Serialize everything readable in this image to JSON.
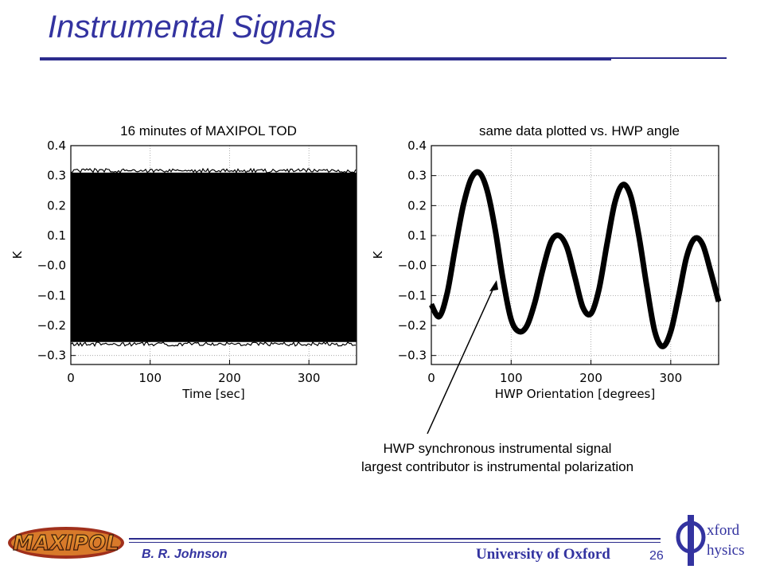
{
  "slide": {
    "title": "Instrumental Signals",
    "annotation_line1": "HWP synchronous instrumental signal",
    "annotation_line2": "largest contributor is instrumental polarization",
    "author": "B. R. Johnson",
    "university": "University of Oxford",
    "page_number": "26",
    "maxipol_logo_text": "MAXIPOL",
    "oxford_logo_text": [
      "xford",
      "hysics"
    ],
    "accent_color": "#3333a0"
  },
  "chart_data": [
    {
      "type": "area",
      "title": "16 minutes of MAXIPOL TOD",
      "xlabel": "Time [sec]",
      "ylabel": "K",
      "xlim": [
        0,
        360
      ],
      "ylim": [
        -0.33,
        0.4
      ],
      "x_ticks": [
        "0",
        "100",
        "200",
        "300"
      ],
      "x_tick_values": [
        0,
        100,
        200,
        300
      ],
      "y_ticks": [
        "0.4",
        "0.3",
        "0.2",
        "0.1",
        "−0.0",
        "−0.1",
        "−0.2",
        "−0.3"
      ],
      "y_tick_values": [
        0.4,
        0.3,
        0.2,
        0.1,
        0.0,
        -0.1,
        -0.2,
        -0.3
      ],
      "grid": true,
      "series": [
        {
          "x": [
            0,
            360
          ],
          "upper": [
            0.31,
            0.31
          ],
          "lower": [
            -0.255,
            -0.255
          ]
        }
      ]
    },
    {
      "type": "scatter",
      "title": "same data plotted vs. HWP angle",
      "xlabel": "HWP Orientation [degrees]",
      "ylabel": "K",
      "xlim": [
        0,
        360
      ],
      "ylim": [
        -0.33,
        0.4
      ],
      "x_ticks": [
        "0",
        "100",
        "200",
        "300"
      ],
      "x_tick_values": [
        0,
        100,
        200,
        300
      ],
      "y_ticks": [
        "0.4",
        "0.3",
        "0.2",
        "0.1",
        "−0.0",
        "−0.1",
        "−0.2",
        "−0.3"
      ],
      "y_tick_values": [
        0.4,
        0.3,
        0.2,
        0.1,
        0.0,
        -0.1,
        -0.2,
        -0.3
      ],
      "grid": true,
      "series": [
        {
          "x": [
            0,
            10,
            20,
            30,
            40,
            50,
            60,
            70,
            80,
            90,
            100,
            110,
            120,
            130,
            140,
            150,
            160,
            170,
            180,
            190,
            200,
            210,
            220,
            230,
            240,
            250,
            260,
            270,
            280,
            290,
            300,
            310,
            320,
            330,
            340,
            350,
            360
          ],
          "y": [
            -0.13,
            -0.17,
            -0.09,
            0.06,
            0.2,
            0.29,
            0.31,
            0.25,
            0.12,
            -0.05,
            -0.18,
            -0.22,
            -0.2,
            -0.12,
            -0.01,
            0.08,
            0.1,
            0.06,
            -0.04,
            -0.14,
            -0.16,
            -0.08,
            0.07,
            0.21,
            0.27,
            0.23,
            0.1,
            -0.07,
            -0.22,
            -0.27,
            -0.22,
            -0.1,
            0.03,
            0.09,
            0.07,
            -0.02,
            -0.12
          ]
        }
      ]
    }
  ]
}
